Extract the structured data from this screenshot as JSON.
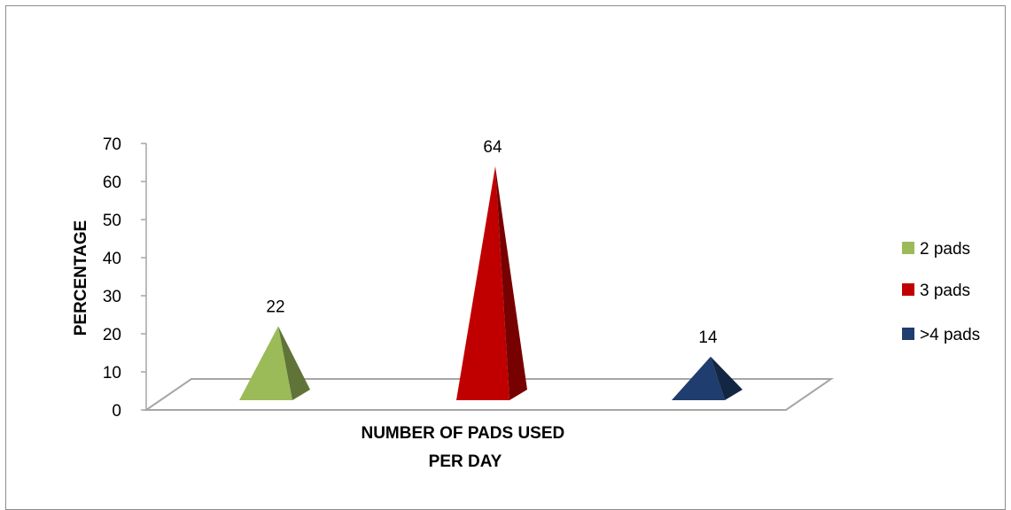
{
  "chart_data": {
    "type": "bar",
    "bar_shape": "pyramid",
    "three_d": true,
    "title": "",
    "xlabel": "NUMBER OF PADS USED PER DAY",
    "ylabel": "PERCENTAGE",
    "ylim": [
      0,
      70
    ],
    "yticks": [
      0,
      10,
      20,
      30,
      40,
      50,
      60,
      70
    ],
    "grid": false,
    "legend_position": "right",
    "series": [
      {
        "name": "2 pads",
        "value": 22,
        "label": "22",
        "color": "#9BBB59"
      },
      {
        "name": "3 pads",
        "value": 64,
        "label": "64",
        "color": "#C00000"
      },
      {
        "name": ">4 pads",
        "value": 14,
        "label": "14",
        "color": "#1F3D6E"
      }
    ]
  }
}
